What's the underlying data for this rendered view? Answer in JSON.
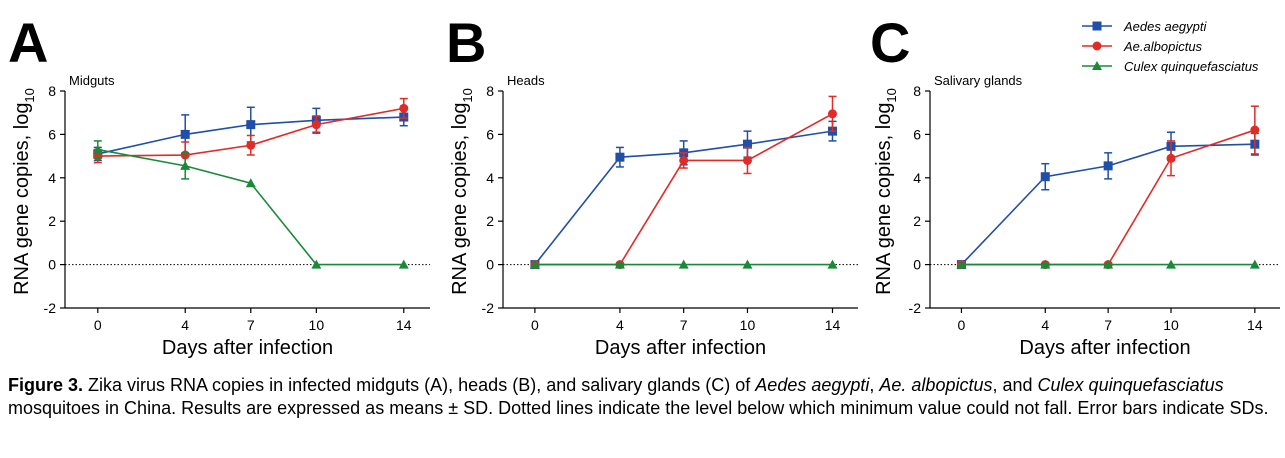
{
  "chart_data": [
    {
      "type": "line",
      "panel": "A",
      "title": "Midguts",
      "xlabel": "Days after infection",
      "ylabel": "RNA gene copies, log",
      "ylabel_sub": "10",
      "x": [
        0,
        4,
        7,
        10,
        14
      ],
      "xlim": [
        -1.5,
        15.2
      ],
      "ylim": [
        -2,
        8
      ],
      "yticks": [
        -2,
        0,
        2,
        4,
        6,
        8
      ],
      "baseline": 0,
      "series": [
        {
          "name": "Aedes aegypti",
          "values": [
            5.1,
            6.0,
            6.45,
            6.65,
            6.8
          ],
          "errors": [
            0.3,
            0.9,
            0.8,
            0.55,
            0.4
          ]
        },
        {
          "name": "Ae.albopictus",
          "values": [
            5.0,
            5.05,
            5.5,
            6.45,
            7.2
          ],
          "errors": [
            0.3,
            0.6,
            0.45,
            0.4,
            0.45
          ]
        },
        {
          "name": "Culex quinquefasciatus",
          "values": [
            5.3,
            4.55,
            3.75,
            0.0,
            0.0
          ],
          "errors": [
            0.4,
            0.6,
            0.0,
            0.0,
            0.0
          ]
        }
      ]
    },
    {
      "type": "line",
      "panel": "B",
      "title": "Heads",
      "xlabel": "Days after infection",
      "ylabel": "RNA gene copies, log",
      "ylabel_sub": "10",
      "x": [
        0,
        4,
        7,
        10,
        14
      ],
      "xlim": [
        -1.5,
        15.2
      ],
      "ylim": [
        -2,
        8
      ],
      "yticks": [
        -2,
        0,
        2,
        4,
        6,
        8
      ],
      "baseline": 0,
      "series": [
        {
          "name": "Aedes aegypti",
          "values": [
            0.0,
            4.95,
            5.15,
            5.55,
            6.15
          ],
          "errors": [
            0.0,
            0.45,
            0.55,
            0.6,
            0.45
          ]
        },
        {
          "name": "Ae.albopictus",
          "values": [
            0.0,
            0.0,
            4.8,
            4.8,
            6.95
          ],
          "errors": [
            0.0,
            0.0,
            0.35,
            0.6,
            0.8
          ]
        },
        {
          "name": "Culex quinquefasciatus",
          "values": [
            0.0,
            0.0,
            0.0,
            0.0,
            0.0
          ],
          "errors": [
            0,
            0,
            0,
            0,
            0
          ]
        }
      ]
    },
    {
      "type": "line",
      "panel": "C",
      "title": "Salivary glands",
      "xlabel": "Days after infection",
      "ylabel": "RNA gene copies, log",
      "ylabel_sub": "10",
      "x": [
        0,
        4,
        7,
        10,
        14
      ],
      "xlim": [
        -1.5,
        15.2
      ],
      "ylim": [
        -2,
        8
      ],
      "yticks": [
        -2,
        0,
        2,
        4,
        6,
        8
      ],
      "baseline": 0,
      "series": [
        {
          "name": "Aedes aegypti",
          "values": [
            0.0,
            4.05,
            4.55,
            5.45,
            5.55
          ],
          "errors": [
            0.0,
            0.6,
            0.6,
            0.65,
            0.5
          ]
        },
        {
          "name": "Ae.albopictus",
          "values": [
            0.0,
            0.0,
            0.0,
            4.9,
            6.2
          ],
          "errors": [
            0.0,
            0.0,
            0.0,
            0.8,
            1.1
          ]
        },
        {
          "name": "Culex quinquefasciatus",
          "values": [
            0.0,
            0.0,
            0.0,
            0.0,
            0.0
          ],
          "errors": [
            0,
            0,
            0,
            0,
            0
          ]
        }
      ]
    }
  ],
  "legend": {
    "placement": "top-right",
    "items": [
      {
        "label": "Aedes aegypti",
        "color": "#1f4fa8",
        "marker": "square"
      },
      {
        "label": "Ae.albopictus",
        "color": "#e02b27",
        "marker": "circle"
      },
      {
        "label": "Culex quinquefasciatus",
        "color": "#1a8a3a",
        "marker": "triangle"
      }
    ]
  },
  "caption": {
    "label": "Figure 3.",
    "parts": [
      " Zika virus RNA copies in infected midguts (A), heads (B), and salivary glands (C) of ",
      "Aedes aegypti",
      ", ",
      "Ae. albopictus",
      ", and ",
      "Culex quinquefasciatus",
      " mosquitoes in China. Results are expressed as means ± SD. Dotted lines indicate the level below which minimum value could not fall. Error bars indicate SDs."
    ]
  }
}
